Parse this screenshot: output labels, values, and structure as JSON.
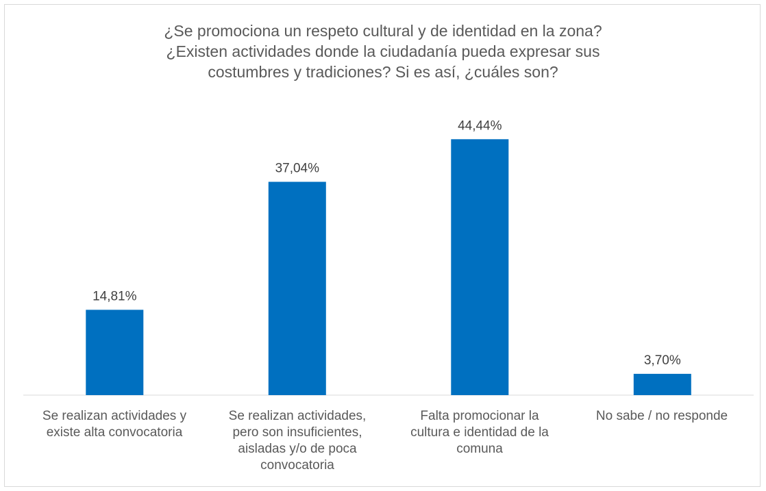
{
  "chart_data": {
    "type": "bar",
    "title_lines": [
      "¿Se promociona un respeto cultural y de identidad en la zona?",
      "¿Existen actividades donde la ciudadanía pueda expresar sus",
      "costumbres y tradiciones? Si es así, ¿cuáles son?"
    ],
    "categories": [
      [
        "Se realizan actividades y",
        "existe alta convocatoria"
      ],
      [
        "Se realizan actividades,",
        "pero son insuficientes,",
        "aisladas y/o de poca",
        "convocatoria"
      ],
      [
        "Falta promocionar la",
        "cultura e identidad de la",
        "comuna"
      ],
      [
        "No sabe / no responde"
      ]
    ],
    "values": [
      14.81,
      37.04,
      44.44,
      3.7
    ],
    "value_labels": [
      "14,81%",
      "37,04%",
      "44,44%",
      "3,70%"
    ],
    "ylim": [
      0,
      50
    ],
    "grid": false,
    "legend": "none",
    "colors": {
      "bar": "#0070C0",
      "axis": "#d9d9d9",
      "title": "#595959",
      "label": "#404040"
    }
  }
}
